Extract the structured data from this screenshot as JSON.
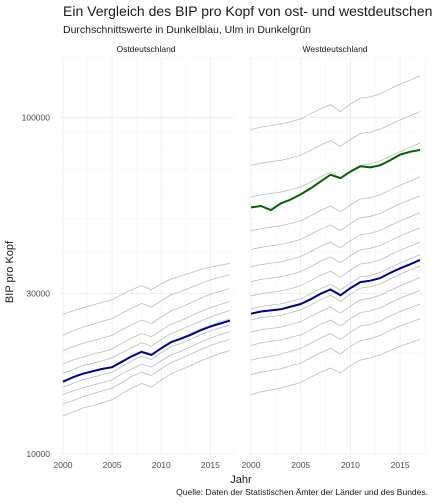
{
  "chart_data": {
    "type": "line",
    "title": "Ein Vergleich des BIP pro Kopf von ost- und westdeutschen Landkreisen",
    "subtitle": "Durchschnittswerte in Dunkelblau, Ulm in Dunkelgrün",
    "xlabel": "Jahr",
    "ylabel": "BIP pro Kopf",
    "caption": "Quelle: Daten der Statistischen Ämter der Länder und des Bundes.",
    "y_scale": "log",
    "ylim": [
      10000,
      150000
    ],
    "y_ticks": [
      10000,
      30000,
      100000
    ],
    "y_tick_labels": [
      "10000",
      "30000",
      "100000"
    ],
    "xlim": [
      2000,
      2017
    ],
    "x_ticks": [
      2000,
      2005,
      2010,
      2015
    ],
    "x_tick_labels": [
      "2000",
      "2005",
      "2010",
      "2015"
    ],
    "grid": true,
    "legend": "none",
    "colors": {
      "kreise": "#bdbdbd",
      "durchschnitt": "#00008b",
      "ulm": "#006400"
    },
    "x": [
      2000,
      2001,
      2002,
      2003,
      2004,
      2005,
      2006,
      2007,
      2008,
      2009,
      2010,
      2011,
      2012,
      2013,
      2014,
      2015,
      2016,
      2017
    ],
    "panels": [
      {
        "label": "Ostdeutschland",
        "series": [
          {
            "role": "durchschnitt",
            "values": [
              16400,
              16900,
              17300,
              17600,
              17900,
              18100,
              18800,
              19500,
              20100,
              19700,
              20600,
              21500,
              22000,
              22600,
              23300,
              23900,
              24400,
              24900
            ]
          },
          {
            "role": "kreis",
            "values": [
              13000,
              13300,
              13700,
              13900,
              14200,
              14500,
              15100,
              15700,
              16200,
              15800,
              16600,
              17300,
              17800,
              18300,
              18900,
              19400,
              19900,
              20300
            ]
          },
          {
            "role": "kreis",
            "values": [
              14100,
              14400,
              14800,
              15100,
              15400,
              15700,
              16300,
              17000,
              17500,
              17100,
              17900,
              18700,
              19200,
              19800,
              20400,
              21000,
              21500,
              21900
            ]
          },
          {
            "role": "kreis",
            "values": [
              15000,
              15400,
              15700,
              16000,
              16300,
              16600,
              17300,
              17900,
              18500,
              18100,
              18900,
              19700,
              20200,
              20800,
              21500,
              22100,
              22600,
              23100
            ]
          },
          {
            "role": "kreis",
            "values": [
              15800,
              16200,
              16600,
              16900,
              17200,
              17500,
              18200,
              18900,
              19500,
              19100,
              20000,
              20800,
              21300,
              21900,
              22600,
              23200,
              23700,
              24200
            ]
          },
          {
            "role": "kreis",
            "values": [
              16500,
              16900,
              17300,
              17600,
              17900,
              18200,
              18900,
              19600,
              20300,
              19800,
              20700,
              21600,
              22100,
              22800,
              23500,
              24100,
              24700,
              25200
            ]
          },
          {
            "role": "kreis",
            "values": [
              17400,
              17800,
              18300,
              18600,
              18900,
              19300,
              20000,
              20700,
              21400,
              20900,
              21900,
              22800,
              23400,
              24100,
              24800,
              25500,
              26100,
              26700
            ]
          },
          {
            "role": "kreis",
            "values": [
              18500,
              19000,
              19400,
              19800,
              20100,
              20500,
              21300,
              22100,
              22800,
              22300,
              23300,
              24300,
              24900,
              25700,
              26500,
              27200,
              27800,
              28400
            ]
          },
          {
            "role": "kreis",
            "values": [
              20300,
              20800,
              21300,
              21700,
              22100,
              22500,
              23400,
              24200,
              25000,
              24400,
              25500,
              26600,
              27300,
              28100,
              29000,
              29800,
              30400,
              31000
            ]
          },
          {
            "role": "kreis",
            "values": [
              22500,
              23200,
              23800,
              24300,
              24800,
              25200,
              26200,
              27100,
              28000,
              27300,
              28500,
              29700,
              30400,
              31200,
              32100,
              32900,
              33500,
              34100
            ]
          },
          {
            "role": "kreis",
            "values": [
              26000,
              26600,
              27200,
              27700,
              28200,
              28700,
              29800,
              30800,
              31600,
              30800,
              32000,
              33100,
              33800,
              34500,
              35300,
              35900,
              36400,
              36800
            ]
          }
        ]
      },
      {
        "label": "Westdeutschland",
        "series": [
          {
            "role": "durchschnitt",
            "values": [
              26100,
              26500,
              26700,
              26900,
              27400,
              27900,
              28800,
              29900,
              30800,
              29600,
              31100,
              32400,
              32700,
              33300,
              34500,
              35600,
              36600,
              37700
            ]
          },
          {
            "role": "ulm",
            "values": [
              54000,
              54500,
              53000,
              55500,
              57000,
              59000,
              61500,
              64500,
              67500,
              66000,
              69000,
              71500,
              71000,
              72000,
              74500,
              77500,
              79000,
              80000
            ]
          },
          {
            "role": "kreis",
            "values": [
              15000,
              15300,
              15500,
              15700,
              16000,
              16300,
              16900,
              17500,
              18000,
              17400,
              18300,
              19000,
              19300,
              19700,
              20300,
              20900,
              21400,
              21900
            ]
          },
          {
            "role": "kreis",
            "values": [
              17200,
              17500,
              17700,
              17900,
              18300,
              18600,
              19300,
              20000,
              20600,
              19800,
              20900,
              21700,
              22000,
              22500,
              23300,
              24000,
              24600,
              25200
            ]
          },
          {
            "role": "kreis",
            "values": [
              19000,
              19300,
              19500,
              19800,
              20200,
              20600,
              21300,
              22100,
              22800,
              21900,
              23000,
              24000,
              24300,
              24800,
              25700,
              26500,
              27200,
              27900
            ]
          },
          {
            "role": "kreis",
            "values": [
              21000,
              21400,
              21600,
              21800,
              22200,
              22600,
              23400,
              24300,
              25000,
              24000,
              25200,
              26300,
              26600,
              27200,
              28100,
              29000,
              29800,
              30600
            ]
          },
          {
            "role": "kreis",
            "values": [
              23000,
              23400,
              23600,
              23800,
              24300,
              24700,
              25600,
              26500,
              27300,
              26200,
              27500,
              28700,
              29000,
              29600,
              30600,
              31600,
              32500,
              33400
            ]
          },
          {
            "role": "kreis",
            "values": [
              25000,
              25400,
              25600,
              25800,
              26300,
              26800,
              27700,
              28700,
              29600,
              28400,
              29800,
              31100,
              31400,
              32000,
              33100,
              34200,
              35200,
              36200
            ]
          },
          {
            "role": "kreis",
            "values": [
              27000,
              27400,
              27700,
              27900,
              28400,
              28900,
              29900,
              31000,
              31900,
              30700,
              32200,
              33600,
              33900,
              34600,
              35800,
              36900,
              38000,
              39100
            ]
          },
          {
            "role": "kreis",
            "values": [
              29500,
              29900,
              30200,
              30500,
              31000,
              31600,
              32700,
              33900,
              34900,
              33500,
              35200,
              36700,
              37000,
              37700,
              39000,
              40300,
              41400,
              42600
            ]
          },
          {
            "role": "kreis",
            "values": [
              32500,
              33000,
              33300,
              33600,
              34200,
              34800,
              36000,
              37400,
              38500,
              37000,
              38800,
              40400,
              40800,
              41600,
              43000,
              44400,
              45700,
              47000
            ]
          },
          {
            "role": "kreis",
            "values": [
              36000,
              36500,
              36900,
              37200,
              37900,
              38600,
              39900,
              41400,
              42600,
              41000,
              43000,
              44800,
              45200,
              46100,
              47700,
              49200,
              50600,
              52100
            ]
          },
          {
            "role": "kreis",
            "values": [
              40500,
              41100,
              41500,
              41900,
              42600,
              43400,
              44900,
              46500,
              47900,
              46100,
              48300,
              50300,
              50800,
              51800,
              53600,
              55300,
              56900,
              58500
            ]
          },
          {
            "role": "kreis",
            "values": [
              46000,
              46700,
              47200,
              47600,
              48400,
              49300,
              51000,
              52900,
              54500,
              52400,
              54900,
              57200,
              57700,
              58900,
              60900,
              62800,
              64600,
              66500
            ]
          },
          {
            "role": "kreis",
            "values": [
              58000,
              58800,
              59400,
              60000,
              61000,
              62100,
              64300,
              66600,
              68600,
              66000,
              69200,
              72000,
              72700,
              74200,
              76700,
              79100,
              81400,
              83800
            ]
          },
          {
            "role": "kreis",
            "values": [
              72000,
              73000,
              73800,
              74500,
              75700,
              77100,
              79800,
              82700,
              85200,
              82000,
              85900,
              89500,
              90300,
              92100,
              95200,
              98200,
              101000,
              104000
            ]
          },
          {
            "role": "kreis",
            "values": [
              92000,
              93500,
              94500,
              95500,
              97000,
              99000,
              102500,
              106000,
              109000,
              104000,
              109500,
              114000,
              115000,
              117500,
              121500,
              125500,
              129000,
              133000
            ]
          }
        ]
      }
    ]
  }
}
